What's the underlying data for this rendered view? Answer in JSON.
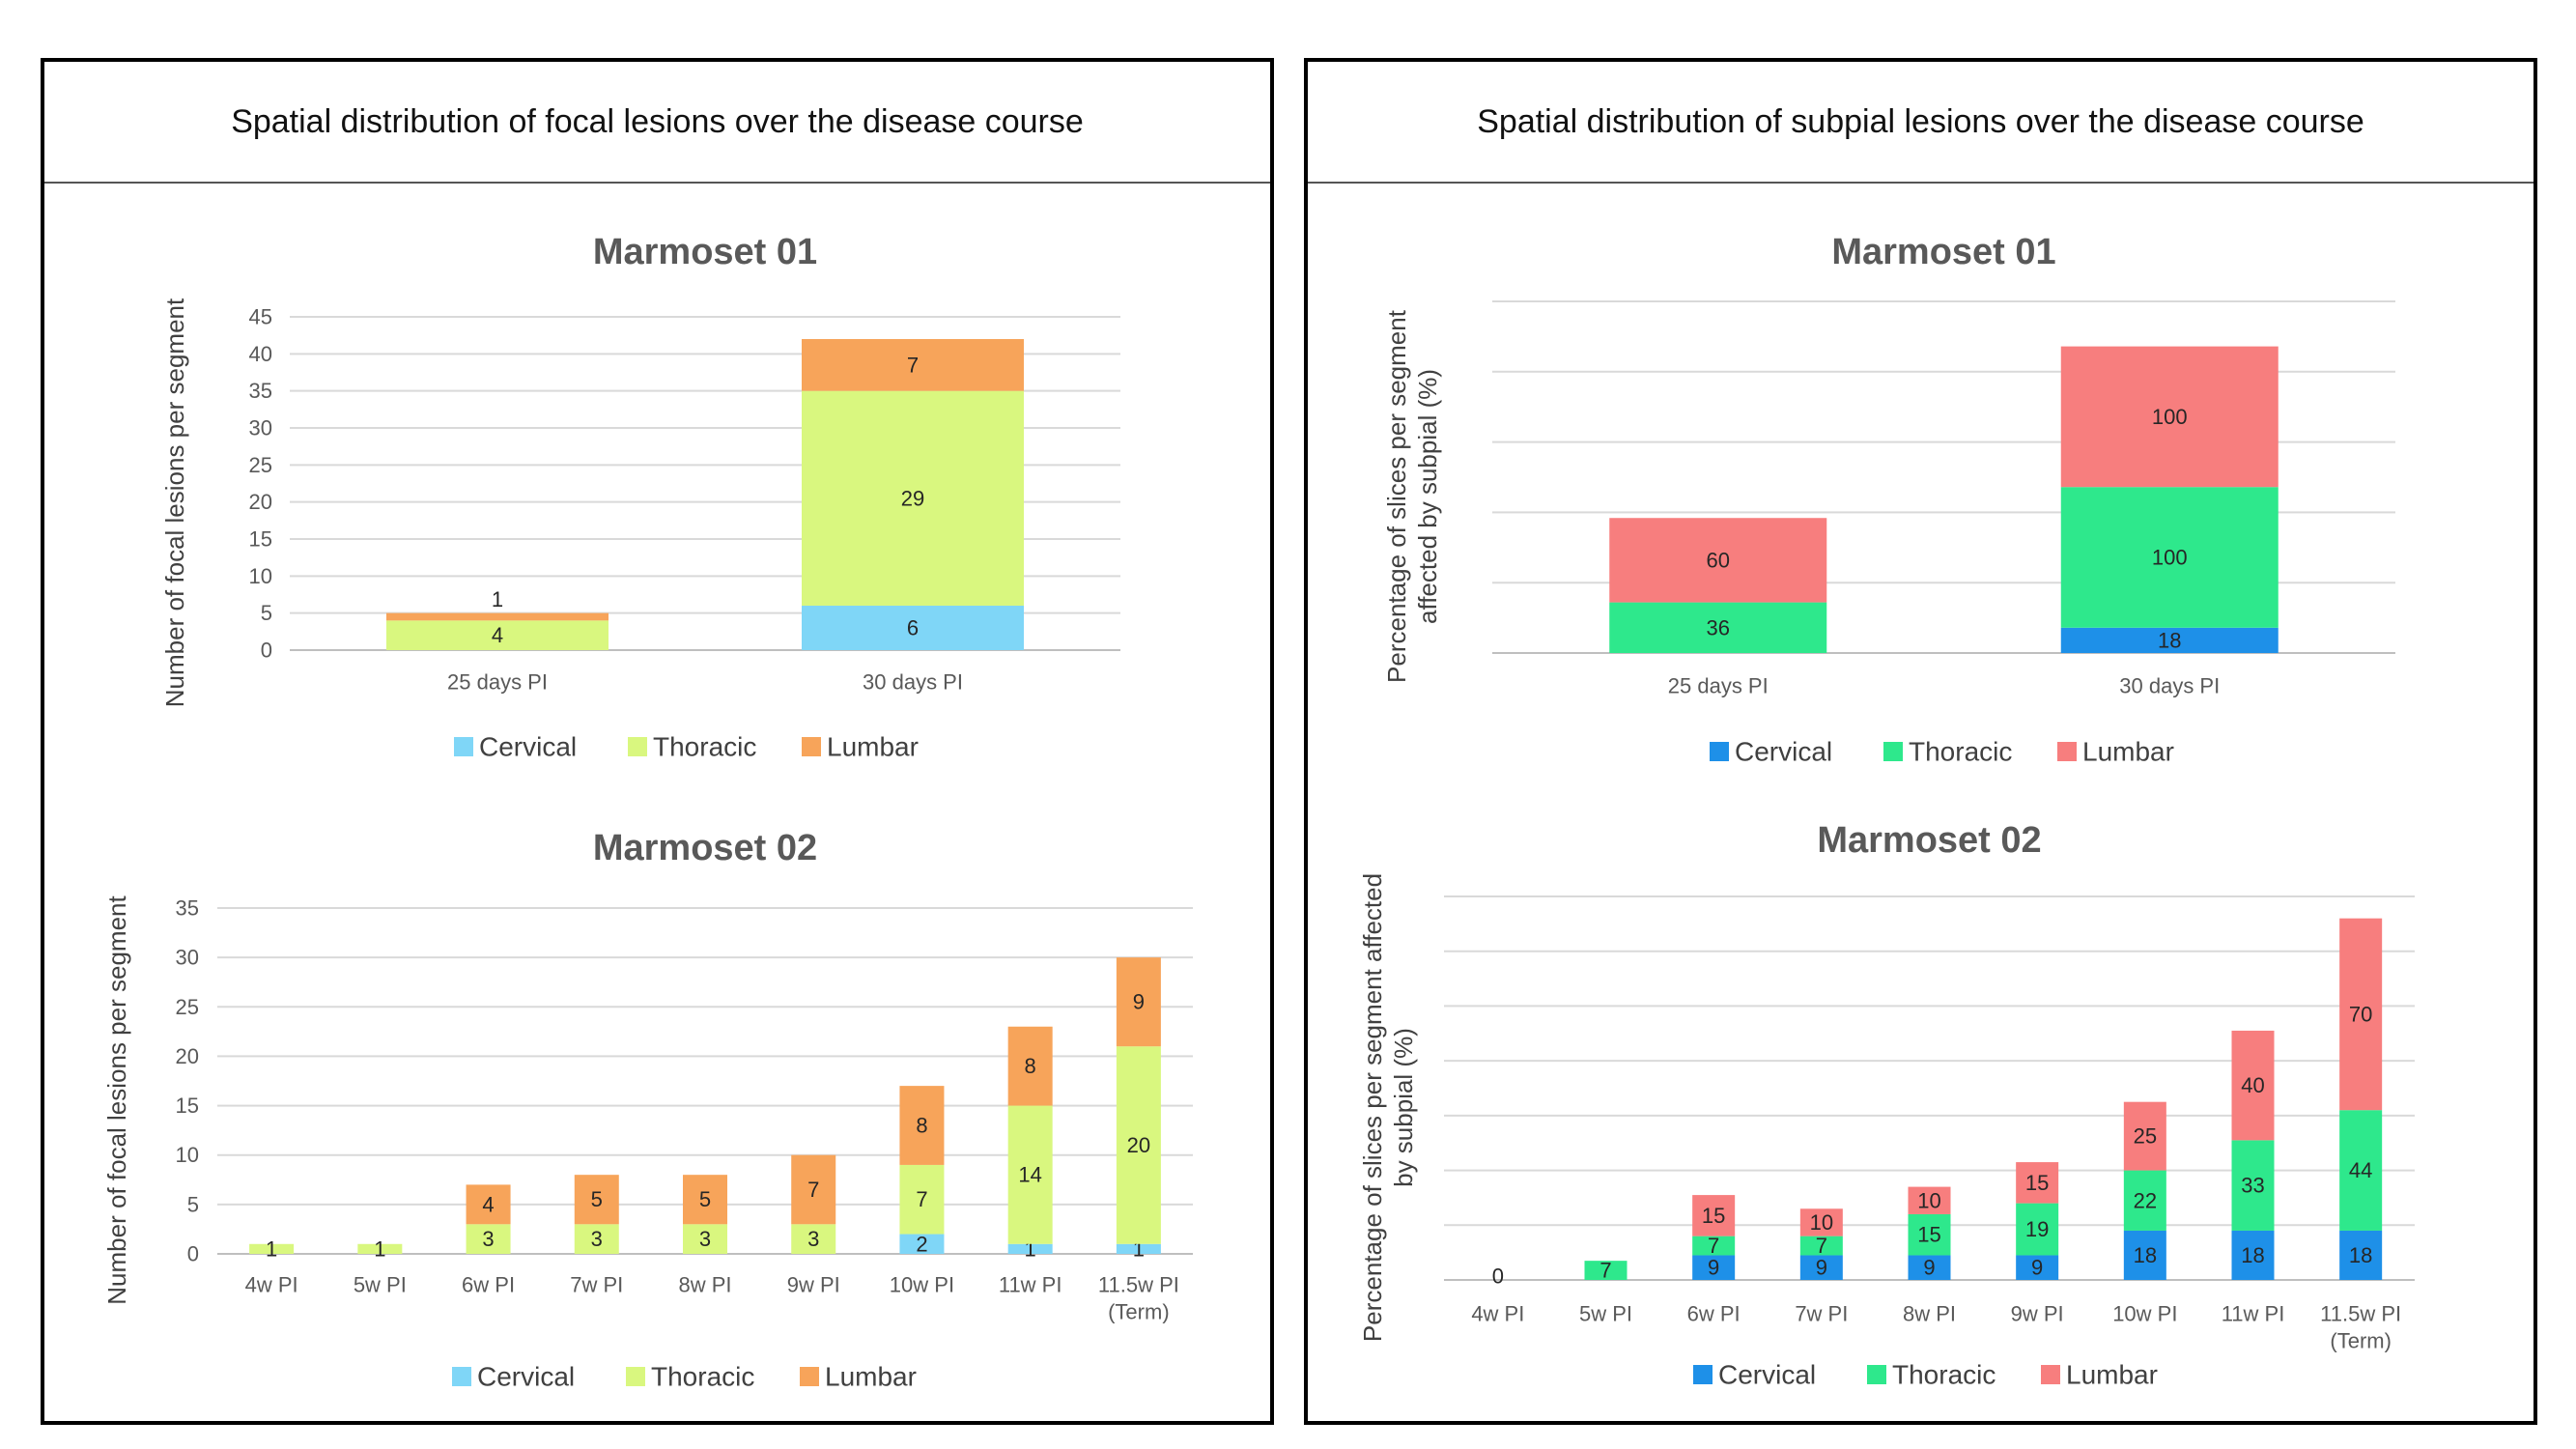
{
  "panels": {
    "left_title": "Spatial distribution of focal lesions over the disease course",
    "right_title": "Spatial distribution of subpial lesions over the disease course"
  },
  "colors": {
    "focal": {
      "Cervical": "#7fd6f7",
      "Thoracic": "#d9f77f",
      "Lumbar": "#f7a45a"
    },
    "subpial": {
      "Cervical": "#1e90e8",
      "Thoracic": "#2ee88c",
      "Lumbar": "#f77e7e"
    }
  },
  "chart_data": [
    {
      "id": "focal-m01",
      "type": "bar",
      "stacked": true,
      "title": "Marmoset 01",
      "ylabel": "Number of focal lesions per segment",
      "categories": [
        "25 days PI",
        "30 days PI"
      ],
      "series": [
        {
          "name": "Cervical",
          "values": [
            0,
            6
          ],
          "labels": [
            "",
            "6"
          ]
        },
        {
          "name": "Thoracic",
          "values": [
            4,
            29
          ],
          "labels": [
            "4",
            "29"
          ]
        },
        {
          "name": "Lumbar",
          "values": [
            1,
            7
          ],
          "labels": [
            "1",
            "7"
          ]
        }
      ],
      "ylim": [
        0,
        45
      ],
      "yticks": [
        0,
        5,
        10,
        15,
        20,
        25,
        30,
        35,
        40,
        45
      ],
      "show_yticks": true,
      "legend": [
        "Cervical",
        "Thoracic",
        "Lumbar"
      ],
      "legend_position": "bottom"
    },
    {
      "id": "focal-m02",
      "type": "bar",
      "stacked": true,
      "title": "Marmoset 02",
      "ylabel": "Number of focal lesions per segment",
      "categories": [
        "4w PI",
        "5w PI",
        "6w PI",
        "7w PI",
        "8w PI",
        "9w PI",
        "10w PI",
        "11w PI",
        "11.5w PI"
      ],
      "category_sublabels": [
        "",
        "",
        "",
        "",
        "",
        "",
        "",
        "",
        "(Term)"
      ],
      "series": [
        {
          "name": "Cervical",
          "values": [
            0,
            0,
            0,
            0,
            0,
            0,
            2,
            1,
            1
          ],
          "labels": [
            "",
            "",
            "",
            "",
            "",
            "",
            "2",
            "1",
            "1"
          ]
        },
        {
          "name": "Thoracic",
          "values": [
            1,
            1,
            3,
            3,
            3,
            3,
            7,
            14,
            20
          ],
          "labels": [
            "1",
            "1",
            "3",
            "3",
            "3",
            "3",
            "7",
            "14",
            "20"
          ]
        },
        {
          "name": "Lumbar",
          "values": [
            0,
            0,
            4,
            5,
            5,
            7,
            8,
            8,
            9
          ],
          "labels": [
            "",
            "",
            "4",
            "5",
            "5",
            "7",
            "8",
            "8",
            "9"
          ]
        }
      ],
      "ylim": [
        0,
        35
      ],
      "yticks": [
        0,
        5,
        10,
        15,
        20,
        25,
        30,
        35
      ],
      "show_yticks": true,
      "legend": [
        "Cervical",
        "Thoracic",
        "Lumbar"
      ],
      "legend_position": "bottom"
    },
    {
      "id": "subpial-m01",
      "type": "bar",
      "stacked": true,
      "title": "Marmoset 01",
      "ylabel": "Percentage of slices per segment affected by subpial (%)",
      "ylabel_lines": [
        "Percentage of slices per segment",
        "affected by subpial (%)"
      ],
      "categories": [
        "25 days PI",
        "30 days PI"
      ],
      "series": [
        {
          "name": "Cervical",
          "values": [
            0,
            18
          ],
          "labels": [
            "",
            "18"
          ]
        },
        {
          "name": "Thoracic",
          "values": [
            36,
            100
          ],
          "labels": [
            "36",
            "100"
          ]
        },
        {
          "name": "Lumbar",
          "values": [
            60,
            100
          ],
          "labels": [
            "60",
            "100"
          ]
        }
      ],
      "ylim": [
        0,
        250
      ],
      "yticks": [
        0,
        50,
        100,
        150,
        200,
        250
      ],
      "show_yticks": false,
      "legend": [
        "Cervical",
        "Thoracic",
        "Lumbar"
      ],
      "legend_position": "bottom"
    },
    {
      "id": "subpial-m02",
      "type": "bar",
      "stacked": true,
      "title": "Marmoset 02",
      "ylabel": "Percentage of slices per segment affected by subpial (%)",
      "ylabel_lines": [
        "Percentage of slices per segment affected",
        "by subpial (%)"
      ],
      "categories": [
        "4w PI",
        "5w PI",
        "6w PI",
        "7w PI",
        "8w PI",
        "9w PI",
        "10w PI",
        "11w PI",
        "11.5w PI"
      ],
      "category_sublabels": [
        "",
        "",
        "",
        "",
        "",
        "",
        "",
        "",
        "(Term)"
      ],
      "series": [
        {
          "name": "Cervical",
          "values": [
            0,
            0,
            9,
            9,
            9,
            9,
            18,
            18,
            18
          ],
          "labels": [
            "0",
            "",
            "9",
            "9",
            "9",
            "9",
            "18",
            "18",
            "18"
          ]
        },
        {
          "name": "Thoracic",
          "values": [
            0,
            7,
            7,
            7,
            15,
            19,
            22,
            33,
            44
          ],
          "labels": [
            "",
            "7",
            "7",
            "7",
            "15",
            "19",
            "22",
            "33",
            "44"
          ]
        },
        {
          "name": "Lumbar",
          "values": [
            0,
            0,
            15,
            10,
            10,
            15,
            25,
            40,
            70
          ],
          "labels": [
            "",
            "",
            "15",
            "10",
            "10",
            "15",
            "25",
            "40",
            "70"
          ]
        }
      ],
      "ylim": [
        0,
        140
      ],
      "yticks": [
        0,
        20,
        40,
        60,
        80,
        100,
        120,
        140
      ],
      "show_yticks": false,
      "legend": [
        "Cervical",
        "Thoracic",
        "Lumbar"
      ],
      "legend_position": "bottom"
    }
  ]
}
